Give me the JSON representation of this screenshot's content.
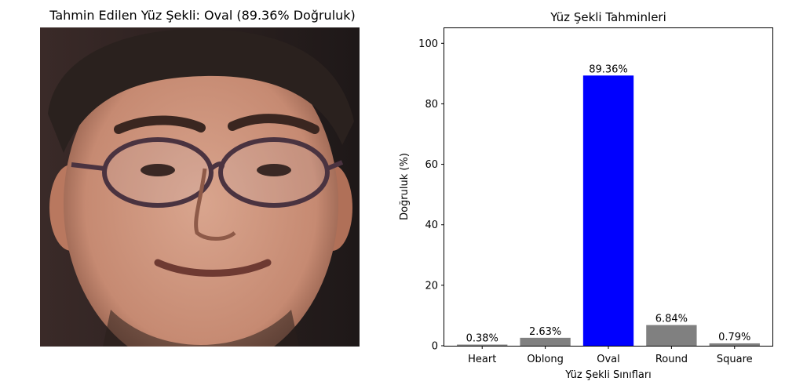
{
  "left_panel": {
    "title": "Tahmin Edilen Yüz Şekli: Oval (89.36% Doğruluk)"
  },
  "chart_data": {
    "type": "bar",
    "title": "Yüz Şekli Tahminleri",
    "xlabel": "Yüz Şekli Sınıfları",
    "ylabel": "Doğruluk (%)",
    "categories": [
      "Heart",
      "Oblong",
      "Oval",
      "Round",
      "Square"
    ],
    "values": [
      0.38,
      2.63,
      89.36,
      6.84,
      0.79
    ],
    "data_labels": [
      "0.38%",
      "2.63%",
      "89.36%",
      "6.84%",
      "0.79%"
    ],
    "ylim": [
      0,
      105
    ],
    "yticks": [
      0,
      20,
      40,
      60,
      80,
      100
    ],
    "colors": [
      "#808080",
      "#808080",
      "#0000ff",
      "#808080",
      "#808080"
    ],
    "grid": false,
    "legend": "none"
  }
}
